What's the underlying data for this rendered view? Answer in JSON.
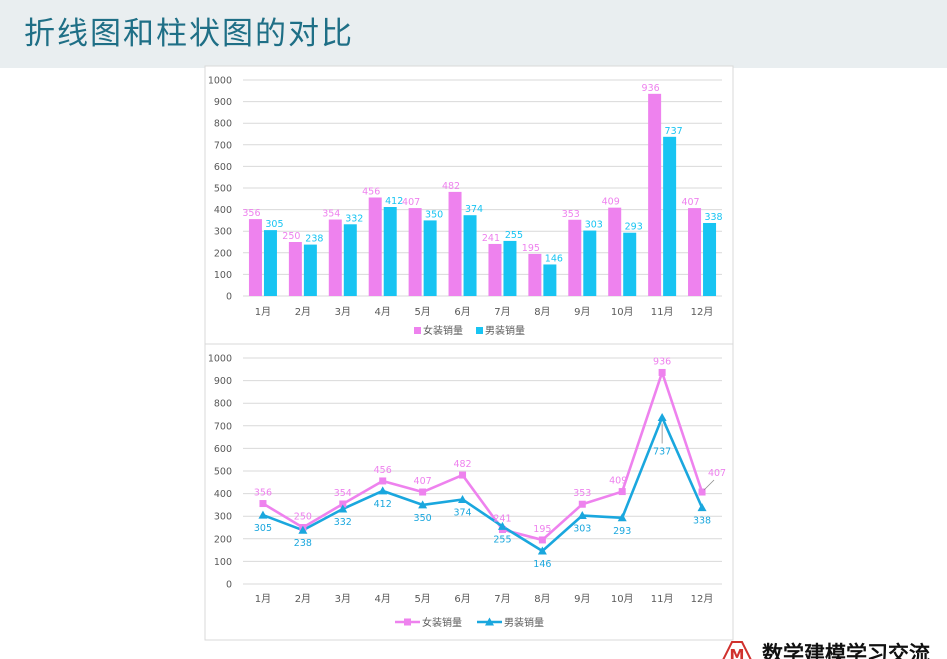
{
  "slide": {
    "title": "折线图和柱状图的对比",
    "watermark_text": "数学建模学习交流"
  },
  "colors": {
    "women": "#ee82ee",
    "men_bar": "#18c4f2",
    "men_line": "#1aa7de",
    "grid": "#d9d9d9",
    "header_bg": "#e9eef0",
    "title": "#1f6f86"
  },
  "chart_data": [
    {
      "type": "bar",
      "categories": [
        "1月",
        "2月",
        "3月",
        "4月",
        "5月",
        "6月",
        "7月",
        "8月",
        "9月",
        "10月",
        "11月",
        "12月"
      ],
      "series": [
        {
          "name": "女装销量",
          "values": [
            356,
            250,
            354,
            456,
            407,
            482,
            241,
            195,
            353,
            409,
            936,
            407
          ]
        },
        {
          "name": "男装销量",
          "values": [
            305,
            238,
            332,
            412,
            350,
            374,
            255,
            146,
            303,
            293,
            737,
            338
          ]
        }
      ],
      "yticks": [
        "0",
        "100",
        "200",
        "300",
        "400",
        "500",
        "600",
        "700",
        "800",
        "900",
        "1000"
      ],
      "ylim": [
        0,
        1000
      ],
      "grid": true,
      "legend": "bottom",
      "data_labels": true
    },
    {
      "type": "line",
      "categories": [
        "1月",
        "2月",
        "3月",
        "4月",
        "5月",
        "6月",
        "7月",
        "8月",
        "9月",
        "10月",
        "11月",
        "12月"
      ],
      "series": [
        {
          "name": "女装销量",
          "marker": "square",
          "values": [
            356,
            250,
            354,
            456,
            407,
            482,
            241,
            195,
            353,
            409,
            936,
            407
          ]
        },
        {
          "name": "男装销量",
          "marker": "triangle",
          "values": [
            305,
            238,
            332,
            412,
            350,
            374,
            255,
            146,
            303,
            293,
            737,
            338
          ]
        }
      ],
      "yticks": [
        "0",
        "100",
        "200",
        "300",
        "400",
        "500",
        "600",
        "700",
        "800",
        "900",
        "1000"
      ],
      "ylim": [
        0,
        1000
      ],
      "grid": true,
      "legend": "bottom",
      "data_labels": true
    }
  ]
}
